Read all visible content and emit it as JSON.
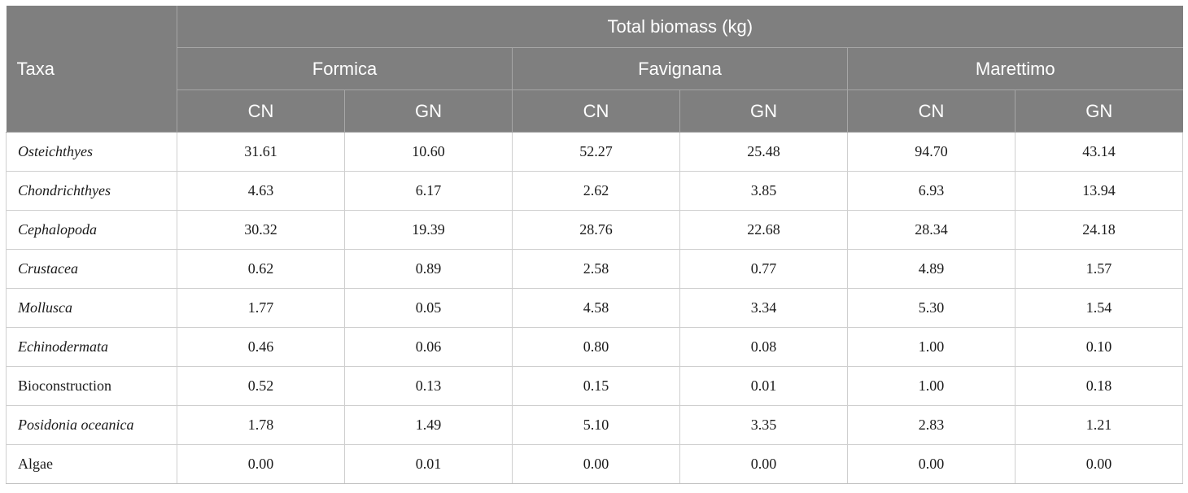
{
  "header": {
    "taxa_label": "Taxa",
    "group_label": "Total biomass (kg)",
    "sites": [
      "Formica",
      "Favignana",
      "Marettimo"
    ],
    "sub_columns": [
      "CN",
      "GN",
      "CN",
      "GN",
      "CN",
      "GN"
    ]
  },
  "rows": [
    {
      "taxon": "Osteichthyes",
      "italic": true,
      "values": [
        "31.61",
        "10.60",
        "52.27",
        "25.48",
        "94.70",
        "43.14"
      ]
    },
    {
      "taxon": "Chondrichthyes",
      "italic": true,
      "values": [
        "4.63",
        "6.17",
        "2.62",
        "3.85",
        "6.93",
        "13.94"
      ]
    },
    {
      "taxon": "Cephalopoda",
      "italic": true,
      "values": [
        "30.32",
        "19.39",
        "28.76",
        "22.68",
        "28.34",
        "24.18"
      ]
    },
    {
      "taxon": "Crustacea",
      "italic": true,
      "values": [
        "0.62",
        "0.89",
        "2.58",
        "0.77",
        "4.89",
        "1.57"
      ]
    },
    {
      "taxon": "Mollusca",
      "italic": true,
      "values": [
        "1.77",
        "0.05",
        "4.58",
        "3.34",
        "5.30",
        "1.54"
      ]
    },
    {
      "taxon": "Echinodermata",
      "italic": true,
      "values": [
        "0.46",
        "0.06",
        "0.80",
        "0.08",
        "1.00",
        "0.10"
      ]
    },
    {
      "taxon": "Bioconstruction",
      "italic": false,
      "values": [
        "0.52",
        "0.13",
        "0.15",
        "0.01",
        "1.00",
        "0.18"
      ]
    },
    {
      "taxon": "Posidonia oceanica",
      "italic": true,
      "values": [
        "1.78",
        "1.49",
        "5.10",
        "3.35",
        "2.83",
        "1.21"
      ]
    },
    {
      "taxon": "Algae",
      "italic": false,
      "values": [
        "0.00",
        "0.01",
        "0.00",
        "0.00",
        "0.00",
        "0.00"
      ]
    }
  ]
}
